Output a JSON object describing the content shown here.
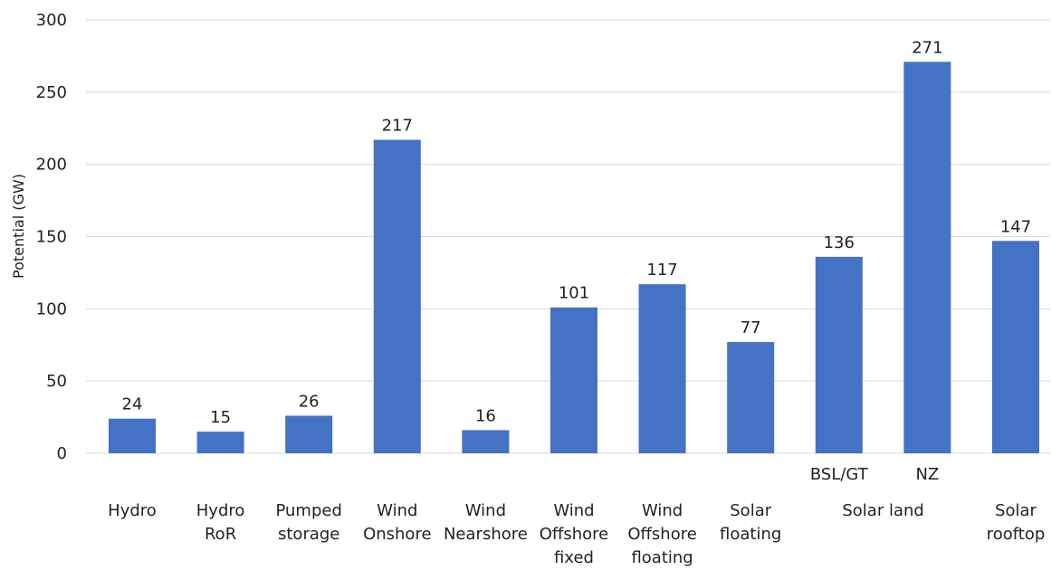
{
  "chart_data": {
    "type": "bar",
    "categories": [
      "Hydro",
      "Hydro RoR",
      "Pumped storage",
      "Wind Onshore",
      "Wind Nearshore",
      "Wind Offshore fixed",
      "Wind Offshore floating",
      "Solar floating",
      "Solar land BSL/GT",
      "Solar land NZ",
      "Solar rooftop"
    ],
    "category_labels": [
      [
        "Hydro"
      ],
      [
        "Hydro",
        "RoR"
      ],
      [
        "Pumped",
        "storage"
      ],
      [
        "Wind",
        "Onshore"
      ],
      [
        "Wind",
        "Nearshore"
      ],
      [
        "Wind",
        "Offshore",
        "fixed"
      ],
      [
        "Wind",
        "Offshore",
        "floating"
      ],
      [
        "Solar",
        "floating"
      ],
      [
        "BSL/GT"
      ],
      [
        "NZ"
      ],
      [
        "Solar",
        "rooftop"
      ]
    ],
    "group_labels": [
      {
        "label": "Solar land",
        "categories": [
          "Solar land BSL/GT",
          "Solar land NZ"
        ]
      }
    ],
    "values": [
      24,
      15,
      26,
      217,
      16,
      101,
      117,
      77,
      136,
      271,
      147
    ],
    "data_labels": [
      "24",
      "15",
      "26",
      "217",
      "16",
      "101",
      "117",
      "77",
      "136",
      "271",
      "147"
    ],
    "title": "",
    "xlabel": "",
    "ylabel": "Potential (GW)",
    "ylim": [
      0,
      300
    ],
    "yticks": [
      0,
      50,
      100,
      150,
      200,
      250,
      300
    ],
    "grid": true,
    "legend": "none",
    "bar_color": "#4472c4"
  }
}
